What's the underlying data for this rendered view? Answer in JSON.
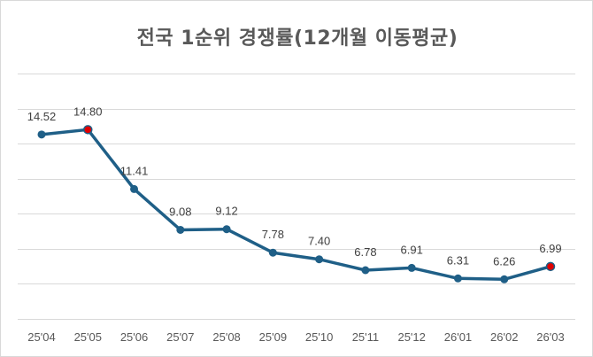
{
  "chart_data": {
    "type": "line",
    "title": "전국 1순위 경쟁률(12개월 이동평균)",
    "xlabel": "",
    "ylabel": "",
    "categories": [
      "25'04",
      "25'05",
      "25'06",
      "25'07",
      "25'08",
      "25'09",
      "25'10",
      "25'11",
      "25'12",
      "26'01",
      "26'02",
      "26'03"
    ],
    "series": [
      {
        "values": [
          14.52,
          14.8,
          11.41,
          9.08,
          9.12,
          7.78,
          7.4,
          6.78,
          6.91,
          6.31,
          6.26,
          6.99
        ],
        "labels": [
          "14.52",
          "14.80",
          "11.41",
          "9.08",
          "9.12",
          "7.78",
          "7.40",
          "6.78",
          "6.91",
          "6.31",
          "6.26",
          "6.99"
        ]
      }
    ],
    "highlighted_points": [
      "25'05",
      "26'03"
    ],
    "ylim": [
      4,
      18
    ],
    "grid": true,
    "y_tick_labels_shown": false,
    "colors": {
      "line": "#1f5f87",
      "marker": "#1f5f87",
      "highlight": "#e00000",
      "grid": "#d9d9d9",
      "text": "#595959"
    }
  }
}
